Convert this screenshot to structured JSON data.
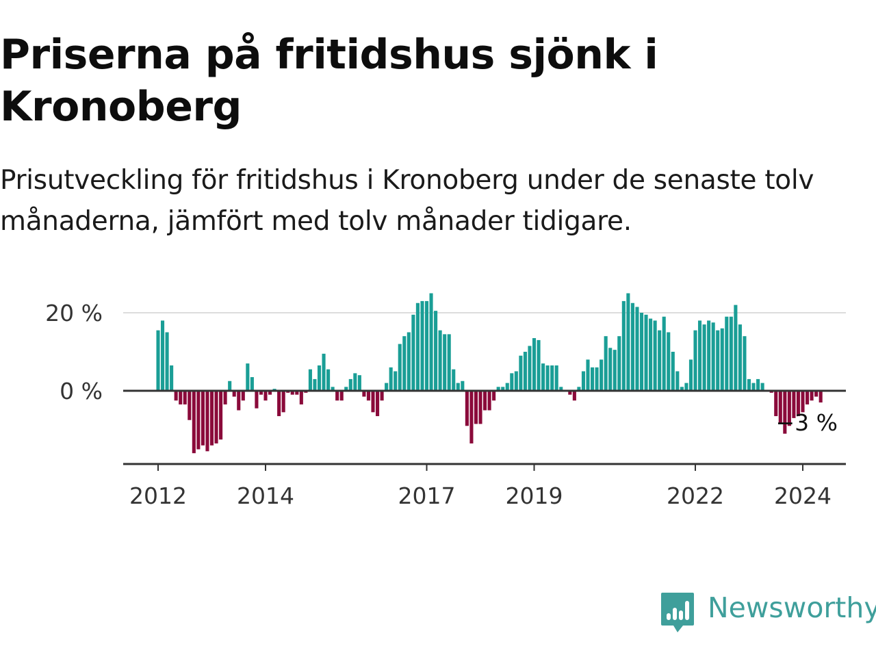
{
  "title": "Priserna på fritidshus sjönk i Kronoberg",
  "subtitle": "Prisutveckling för fritidshus i Kronoberg under de senaste tolv månaderna, jämfört med tolv månader tidigare.",
  "brand": {
    "name": "Newsworthy",
    "icon": "newsworthy-logo-icon"
  },
  "colors": {
    "positive": "#1a9e96",
    "negative": "#8a0a3a",
    "zero_line": "#333333",
    "grid": "#dddddd",
    "brand": "#3f9f9b"
  },
  "chart_data": {
    "type": "bar",
    "ylabel": "",
    "xlabel": "",
    "grid": true,
    "ylim": [
      -19,
      25
    ],
    "y_ticks": [
      {
        "value": 0,
        "label": "0 %"
      },
      {
        "value": 20,
        "label": "20 %"
      }
    ],
    "x_ticks": [
      {
        "value": "2012-01",
        "label": "2012"
      },
      {
        "value": "2014-01",
        "label": "2014"
      },
      {
        "value": "2017-01",
        "label": "2017"
      },
      {
        "value": "2019-01",
        "label": "2019"
      },
      {
        "value": "2022-01",
        "label": "2022"
      },
      {
        "value": "2024-01",
        "label": "2024"
      }
    ],
    "start": "2012-01",
    "end_label": "−3 %",
    "unit": "%",
    "values": [
      15.5,
      18,
      15,
      6.5,
      -2.5,
      -3.5,
      -3.5,
      -7.5,
      -16,
      -15,
      -14,
      -15.5,
      -14,
      -13.5,
      -12.5,
      -3.5,
      2.5,
      -1.5,
      -5,
      -2.5,
      7,
      3.5,
      -4.5,
      -1,
      -2.5,
      -1,
      0.5,
      -6.5,
      -5.5,
      -0.5,
      -1,
      -1,
      -3.5,
      -0.5,
      5.5,
      3,
      6.5,
      9.5,
      5.5,
      1,
      -2.5,
      -2.5,
      1,
      3,
      4.5,
      4,
      -1.5,
      -2.5,
      -5.5,
      -6.5,
      -2.5,
      2,
      6,
      5,
      12,
      14,
      15,
      19.5,
      22.5,
      23,
      23,
      25,
      20.5,
      15.5,
      14.5,
      14.5,
      5.5,
      2,
      2.5,
      -9,
      -13.5,
      -8.5,
      -8.5,
      -5,
      -5,
      -2.5,
      1,
      1,
      2,
      4.5,
      5,
      9,
      10,
      11.5,
      13.5,
      13,
      7,
      6.5,
      6.5,
      6.5,
      1,
      0,
      -1,
      -2.5,
      1,
      5,
      8,
      6,
      6,
      8,
      14,
      11,
      10.5,
      14,
      23,
      25,
      22.5,
      21.5,
      20,
      19.5,
      18.5,
      18,
      15.5,
      19,
      15,
      10,
      5,
      1,
      2,
      8,
      15.5,
      18,
      17,
      18,
      17.5,
      15.5,
      16,
      19,
      19,
      22,
      17,
      14,
      3,
      2,
      3,
      2,
      0,
      -0.5,
      -6.5,
      -8.5,
      -11,
      -9,
      -7,
      -6.5,
      -5.5,
      -3.5,
      -2.5,
      -1.5,
      -3
    ]
  }
}
